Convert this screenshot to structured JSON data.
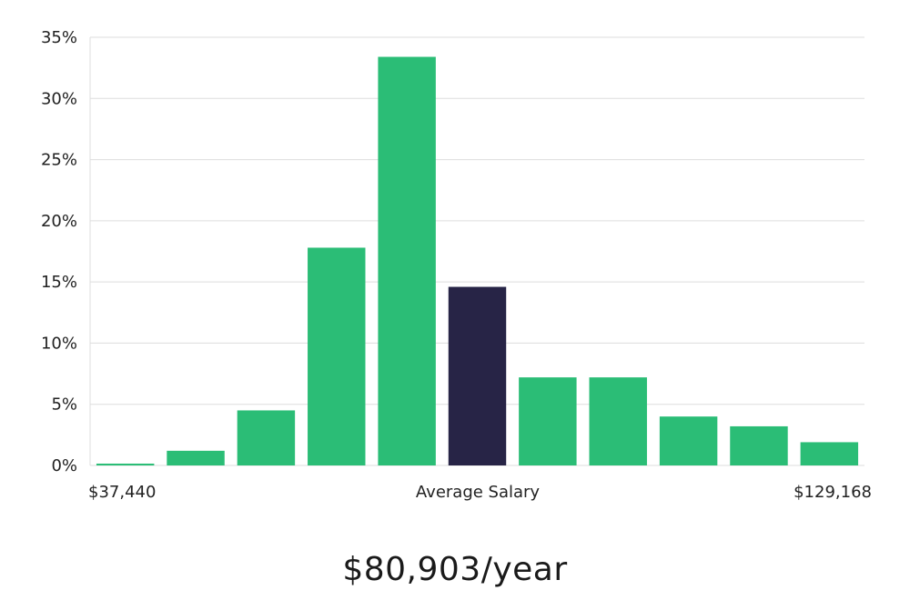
{
  "chart_data": {
    "type": "bar",
    "y_ticks": [
      "0%",
      "5%",
      "10%",
      "15%",
      "20%",
      "25%",
      "30%",
      "35%"
    ],
    "ylim": [
      0,
      35
    ],
    "grid": true,
    "values": [
      0.15,
      1.2,
      4.5,
      17.8,
      33.4,
      14.6,
      7.2,
      7.2,
      4.0,
      3.2,
      1.9
    ],
    "highlight_index": 5,
    "x_labels": {
      "left": "$37,440",
      "center": "Average Salary",
      "right": "$129,168"
    },
    "colors": {
      "bar": "#2bbd76",
      "highlight": "#272446",
      "grid": "#dddddd"
    }
  },
  "footer": {
    "salary": "$80,903/year"
  }
}
